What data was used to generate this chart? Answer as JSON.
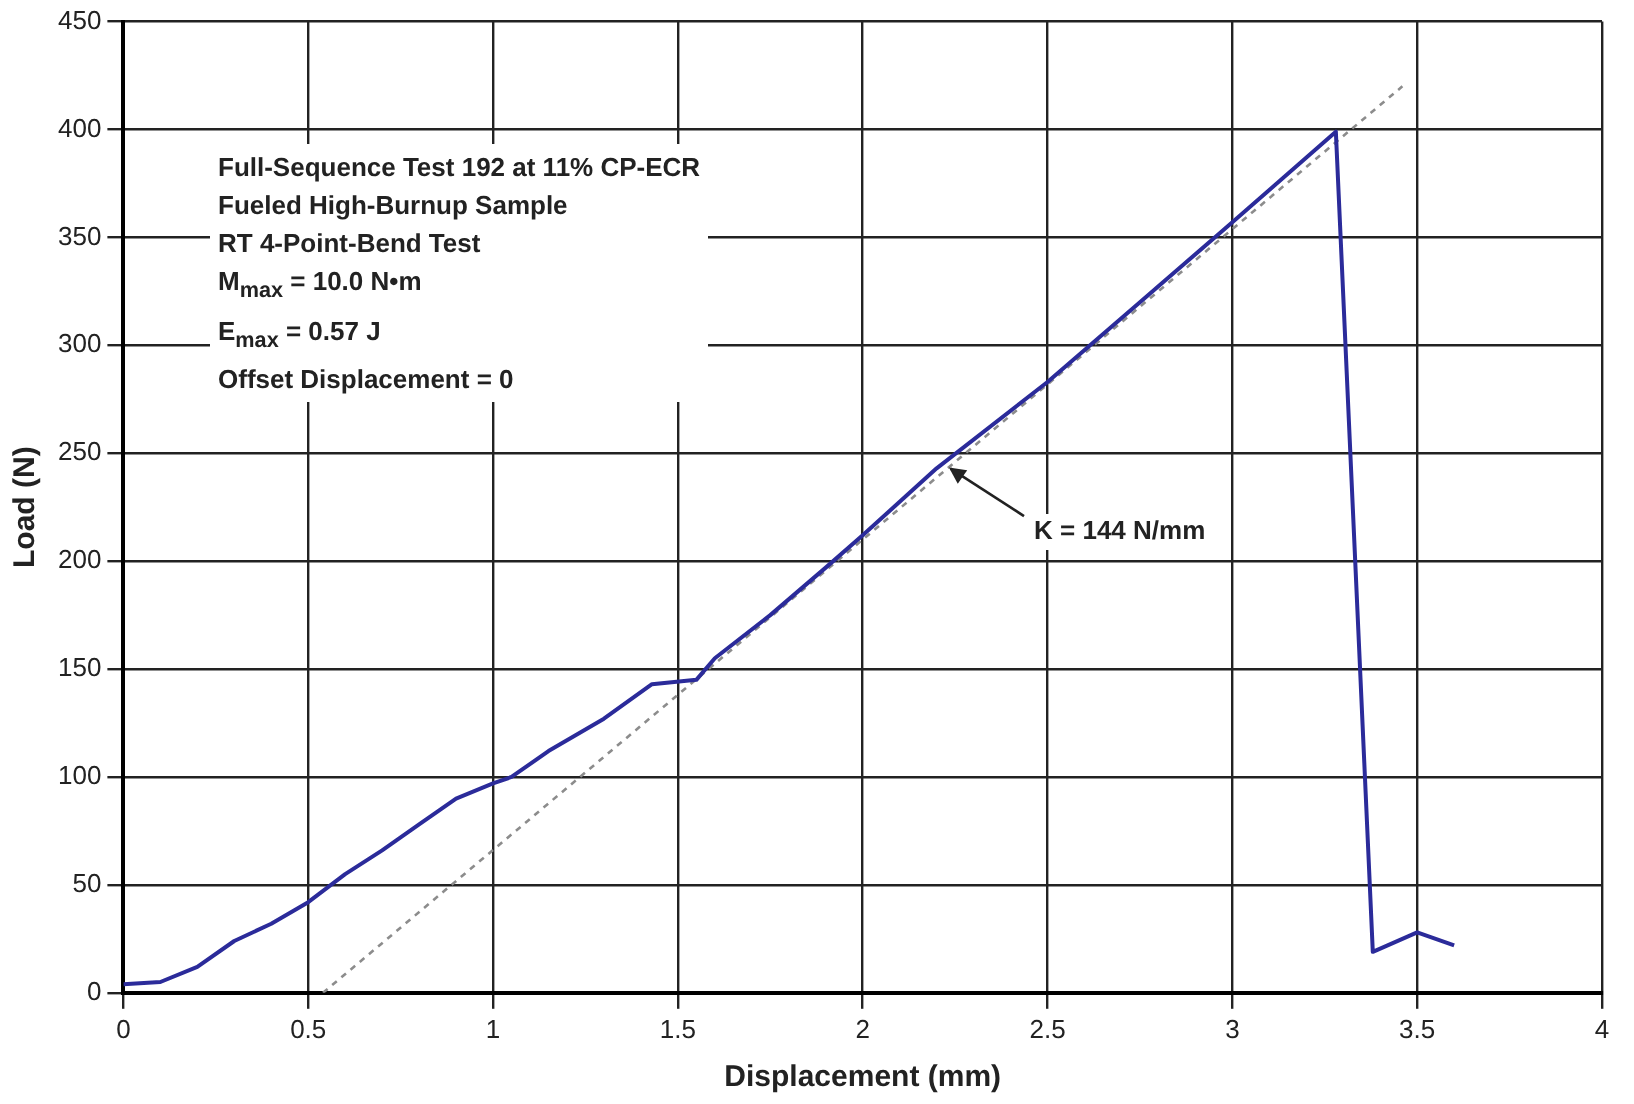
{
  "chart_data": {
    "type": "line",
    "xlabel": "Displacement (mm)",
    "ylabel": "Load (N)",
    "xlim": [
      0,
      4
    ],
    "xticks": [
      0,
      0.5,
      1,
      1.5,
      2,
      2.5,
      3,
      3.5,
      4
    ],
    "ylim": [
      0,
      450
    ],
    "yticks": [
      0,
      50,
      100,
      150,
      200,
      250,
      300,
      350,
      400,
      450
    ],
    "grid": true,
    "legend": false,
    "marker": "none",
    "series": [
      {
        "color": "#2b2b9a",
        "line_style": "solid",
        "x": [
          0,
          0.1,
          0.2,
          0.3,
          0.4,
          0.5,
          0.6,
          0.7,
          0.8,
          0.9,
          1.0,
          1.05,
          1.15,
          1.3,
          1.43,
          1.55,
          1.6,
          1.75,
          1.9,
          2.0,
          2.2,
          2.5,
          2.75,
          3.0,
          3.28,
          3.38,
          3.5,
          3.6
        ],
        "values": [
          4,
          5,
          12,
          24,
          32,
          42,
          55,
          66,
          78,
          90,
          97,
          100,
          112,
          127,
          143,
          145,
          155,
          175,
          197,
          212,
          243,
          283,
          320,
          357,
          399,
          19,
          28,
          22
        ]
      },
      {
        "type": "line",
        "color": "#8c8c8c",
        "line_style": "dotted",
        "x": [
          0.54,
          3.46
        ],
        "values": [
          0,
          420
        ]
      }
    ],
    "annotations": [
      "Full-Sequence Test 192 at 11% CP-ECR",
      "Fueled High-Burnup Sample",
      "RT 4-Point-Bend Test",
      "M$_{max}$ = 10.0 N•m",
      "E$_{max}$ = 0.57 J",
      "Offset Displacement = 0",
      {
        "text": "K = 144 N/mm",
        "x": 2.22,
        "y": 245
      }
    ]
  }
}
